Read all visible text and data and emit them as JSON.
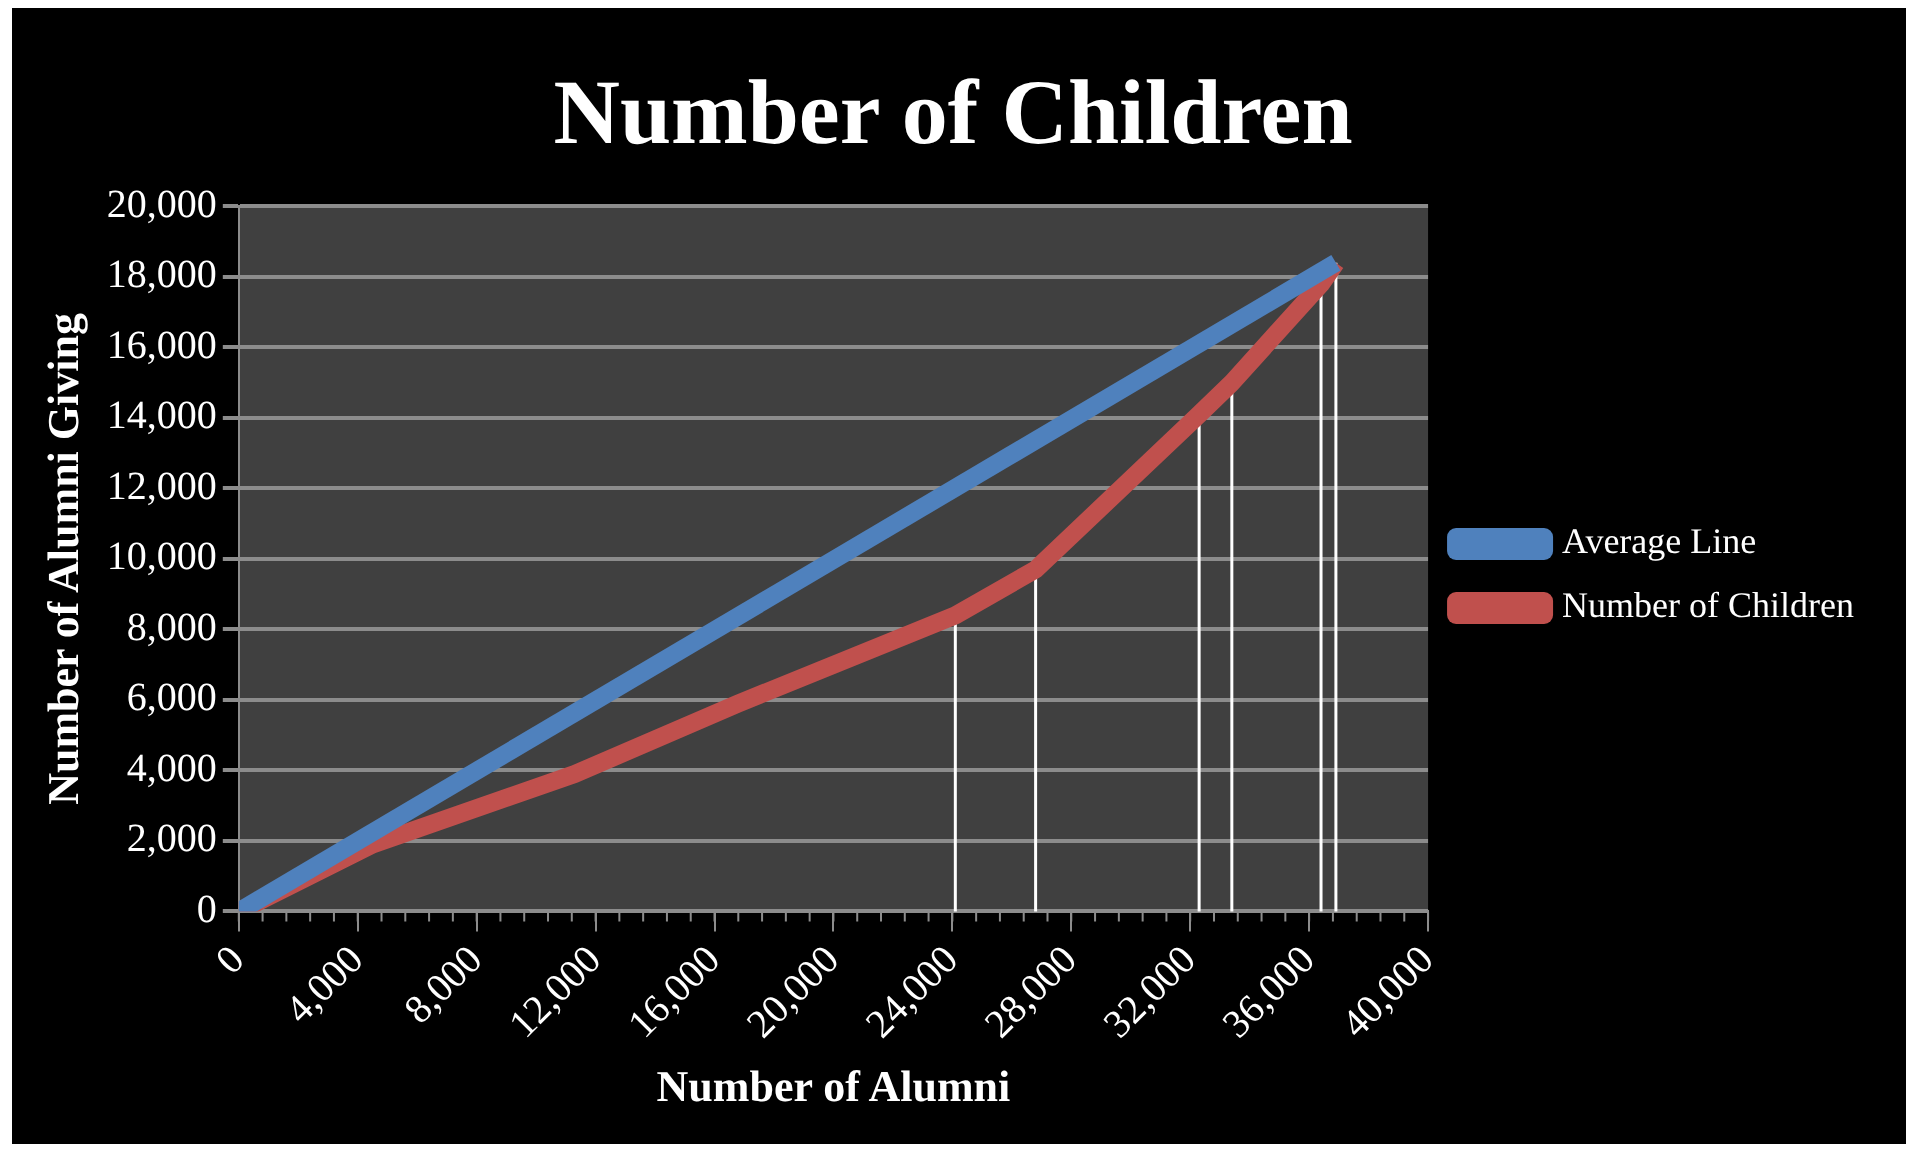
{
  "chart_data": {
    "type": "line",
    "title": "Number of Children",
    "xlabel": "Number of Alumni",
    "ylabel": "Number of Alumni Giving",
    "xlim": [
      0,
      40000
    ],
    "xticks": [
      {
        "value": 0,
        "label": "0"
      },
      {
        "value": 4000,
        "label": "4,000"
      },
      {
        "value": 8000,
        "label": "8,000"
      },
      {
        "value": 12000,
        "label": "12,000"
      },
      {
        "value": 16000,
        "label": "16,000"
      },
      {
        "value": 20000,
        "label": "20,000"
      },
      {
        "value": 24000,
        "label": "24,000"
      },
      {
        "value": 28000,
        "label": "28,000"
      },
      {
        "value": 32000,
        "label": "32,000"
      },
      {
        "value": 36000,
        "label": "36,000"
      },
      {
        "value": 40000,
        "label": "40,000"
      }
    ],
    "ylim": [
      0,
      20000
    ],
    "yticks": [
      {
        "value": 0,
        "label": "0"
      },
      {
        "value": 2000,
        "label": "2,000"
      },
      {
        "value": 4000,
        "label": "4,000"
      },
      {
        "value": 6000,
        "label": "6,000"
      },
      {
        "value": 8000,
        "label": "8,000"
      },
      {
        "value": 10000,
        "label": "10,000"
      },
      {
        "value": 12000,
        "label": "12,000"
      },
      {
        "value": 14000,
        "label": "14,000"
      },
      {
        "value": 16000,
        "label": "16,000"
      },
      {
        "value": 18000,
        "label": "18,000"
      },
      {
        "value": 20000,
        "label": "20,000"
      }
    ],
    "grid": "y",
    "legend": "right",
    "marker": "none",
    "series": [
      {
        "name": "Average Line",
        "color": "#4f81bd",
        "x": [
          0,
          36900
        ],
        "values": [
          0,
          18400
        ]
      },
      {
        "name": "Number of Children",
        "color": "#c0504d",
        "x": [
          0,
          4500,
          11300,
          16800,
          24100,
          26800,
          32300,
          33400,
          36400,
          36900
        ],
        "values": [
          0,
          1900,
          3900,
          5900,
          8400,
          9700,
          14100,
          15000,
          17800,
          18400
        ],
        "errors": [
          null,
          null,
          null,
          null,
          [
            0,
            8400
          ],
          [
            0,
            9700
          ],
          [
            0,
            14100
          ],
          [
            0,
            15000
          ],
          [
            0,
            17800
          ],
          [
            0,
            18400
          ]
        ]
      }
    ]
  }
}
